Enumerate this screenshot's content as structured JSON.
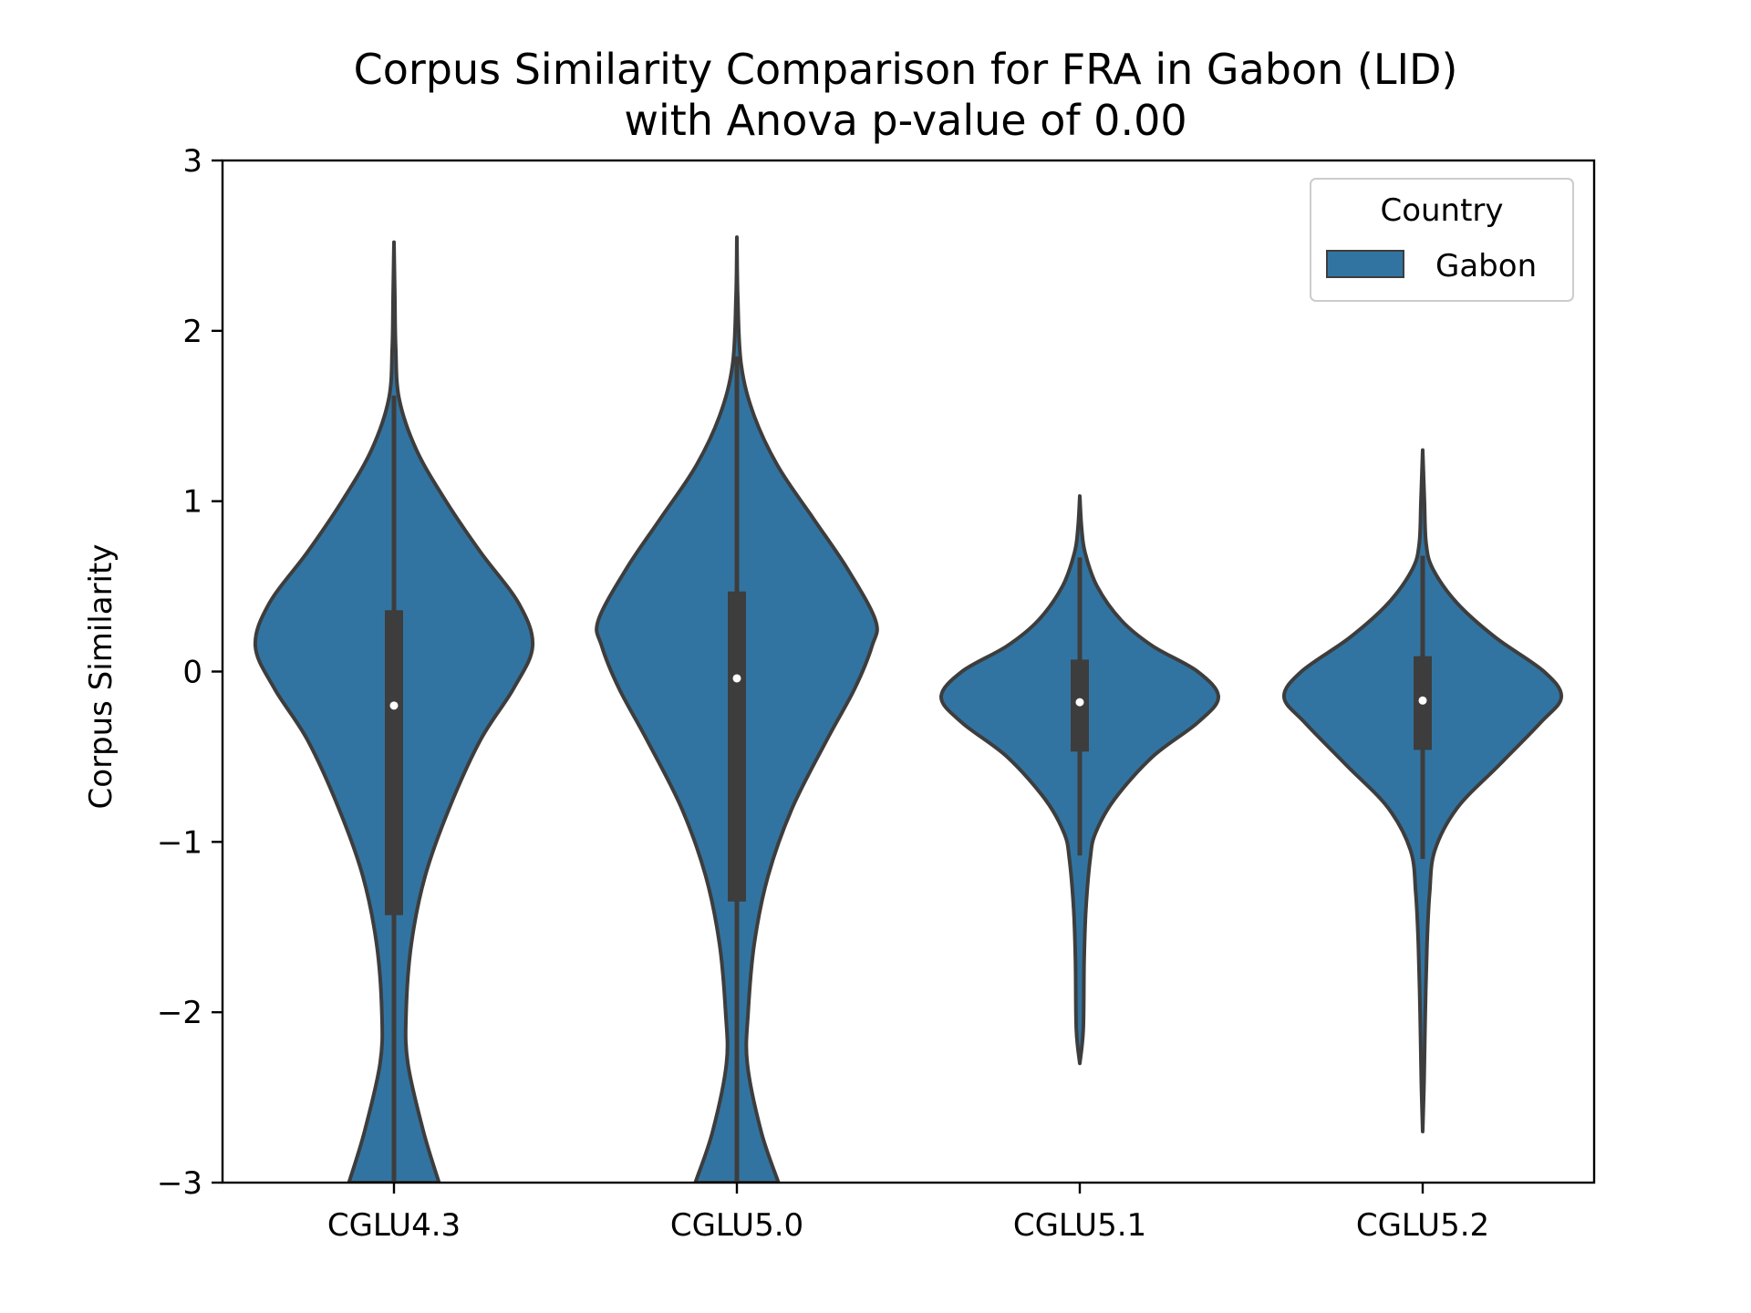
{
  "chart_data": {
    "type": "violin",
    "title": "Corpus Similarity Comparison for FRA in Gabon (LID)",
    "subtitle": "with Anova p-value of 0.00",
    "xlabel": "",
    "ylabel": "Corpus Similarity",
    "ylim": [
      -3,
      3
    ],
    "yticks": [
      -3,
      -2,
      -1,
      0,
      1,
      2,
      3
    ],
    "ytick_labels": [
      "−3",
      "−2",
      "−1",
      "0",
      "1",
      "2",
      "3"
    ],
    "categories": [
      "CGLU4.3",
      "CGLU5.0",
      "CGLU5.1",
      "CGLU5.2"
    ],
    "legend": {
      "title": "Country",
      "position": "top-right",
      "entries": [
        {
          "label": "Gabon",
          "color": "#3274a1"
        }
      ]
    },
    "colors": {
      "fill": "#3274a1",
      "edge": "#3d3d3d",
      "median": "#ffffff"
    },
    "series": [
      {
        "name": "Gabon",
        "violins": [
          {
            "category": "CGLU4.3",
            "min": -3.0,
            "q1": -1.43,
            "median": -0.2,
            "q3": 0.36,
            "max": 2.52,
            "whisker_low": -3.0,
            "whisker_high": 1.62,
            "profile": [
              [
                -3.0,
                0.26
              ],
              [
                -2.7,
                0.17
              ],
              [
                -2.3,
                0.08
              ],
              [
                -2.0,
                0.07
              ],
              [
                -1.6,
                0.1
              ],
              [
                -1.2,
                0.18
              ],
              [
                -0.8,
                0.32
              ],
              [
                -0.4,
                0.5
              ],
              [
                -0.1,
                0.69
              ],
              [
                0.15,
                0.8
              ],
              [
                0.4,
                0.72
              ],
              [
                0.7,
                0.5
              ],
              [
                1.0,
                0.3
              ],
              [
                1.3,
                0.13
              ],
              [
                1.6,
                0.03
              ],
              [
                1.9,
                0.01
              ],
              [
                2.2,
                0.005
              ],
              [
                2.52,
                0.0
              ]
            ]
          },
          {
            "category": "CGLU5.0",
            "min": -3.0,
            "q1": -1.35,
            "median": -0.04,
            "q3": 0.47,
            "max": 2.55,
            "whisker_low": -3.0,
            "whisker_high": 1.85,
            "profile": [
              [
                -3.0,
                0.24
              ],
              [
                -2.7,
                0.14
              ],
              [
                -2.3,
                0.06
              ],
              [
                -2.0,
                0.065
              ],
              [
                -1.6,
                0.1
              ],
              [
                -1.2,
                0.18
              ],
              [
                -0.8,
                0.32
              ],
              [
                -0.4,
                0.52
              ],
              [
                -0.1,
                0.68
              ],
              [
                0.15,
                0.78
              ],
              [
                0.3,
                0.8
              ],
              [
                0.6,
                0.64
              ],
              [
                0.9,
                0.44
              ],
              [
                1.2,
                0.24
              ],
              [
                1.5,
                0.1
              ],
              [
                1.8,
                0.025
              ],
              [
                2.2,
                0.005
              ],
              [
                2.55,
                0.0
              ]
            ]
          },
          {
            "category": "CGLU5.1",
            "min": -2.3,
            "q1": -0.47,
            "median": -0.18,
            "q3": 0.07,
            "max": 1.03,
            "whisker_low": -1.08,
            "whisker_high": 0.67,
            "profile": [
              [
                -2.3,
                0.0
              ],
              [
                -2.1,
                0.02
              ],
              [
                -1.7,
                0.025
              ],
              [
                -1.4,
                0.035
              ],
              [
                -1.1,
                0.06
              ],
              [
                -0.95,
                0.09
              ],
              [
                -0.75,
                0.2
              ],
              [
                -0.5,
                0.42
              ],
              [
                -0.3,
                0.68
              ],
              [
                -0.15,
                0.8
              ],
              [
                0.0,
                0.68
              ],
              [
                0.15,
                0.42
              ],
              [
                0.3,
                0.24
              ],
              [
                0.5,
                0.1
              ],
              [
                0.7,
                0.03
              ],
              [
                0.85,
                0.01
              ],
              [
                1.03,
                0.0
              ]
            ]
          },
          {
            "category": "CGLU5.2",
            "min": -2.7,
            "q1": -0.46,
            "median": -0.17,
            "q3": 0.09,
            "max": 1.3,
            "whisker_low": -1.1,
            "whisker_high": 0.68,
            "profile": [
              [
                -2.7,
                0.0
              ],
              [
                -2.4,
                0.008
              ],
              [
                -2.0,
                0.015
              ],
              [
                -1.6,
                0.025
              ],
              [
                -1.3,
                0.04
              ],
              [
                -1.05,
                0.07
              ],
              [
                -0.8,
                0.2
              ],
              [
                -0.55,
                0.44
              ],
              [
                -0.3,
                0.68
              ],
              [
                -0.15,
                0.8
              ],
              [
                0.0,
                0.7
              ],
              [
                0.2,
                0.42
              ],
              [
                0.4,
                0.2
              ],
              [
                0.6,
                0.06
              ],
              [
                0.75,
                0.02
              ],
              [
                1.0,
                0.01
              ],
              [
                1.3,
                0.0
              ]
            ]
          }
        ]
      }
    ]
  }
}
